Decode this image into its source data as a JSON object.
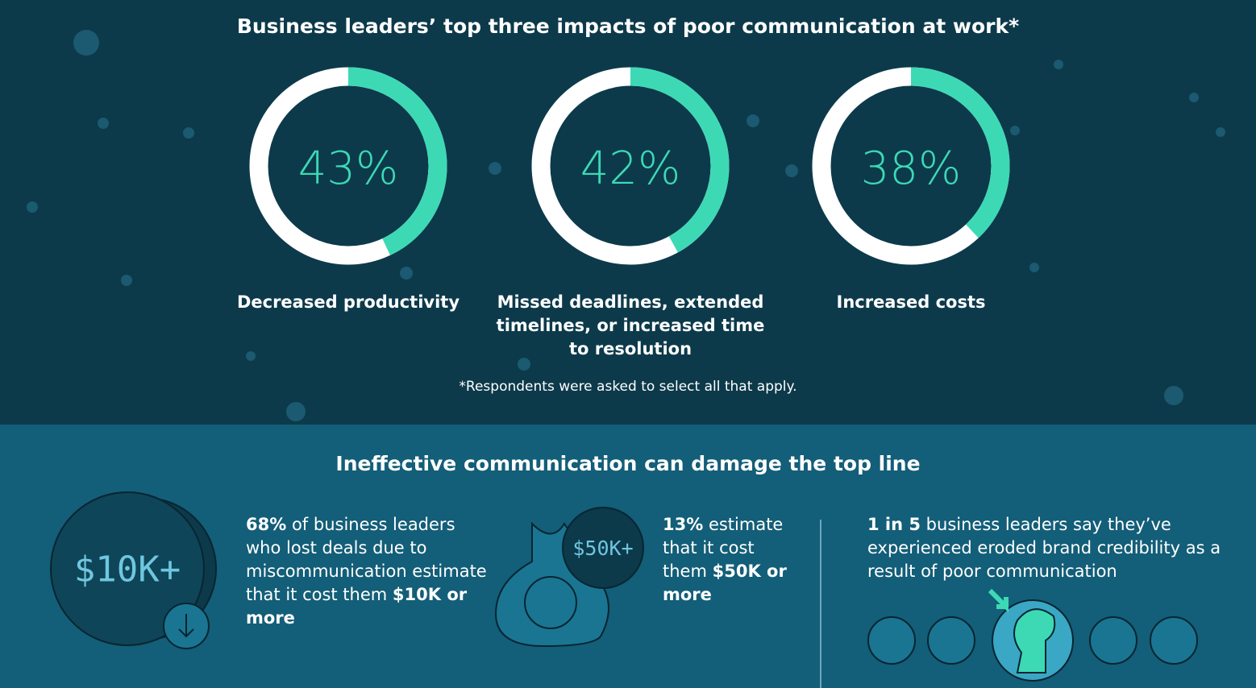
{
  "header": {
    "title": "Business leaders’ top three impacts of poor communication at work*"
  },
  "impacts": [
    {
      "value": 43,
      "label": "43%",
      "text": "Decreased productivity"
    },
    {
      "value": 42,
      "label": "42%",
      "text": "Missed deadlines, extended timelines, or increased time to resolution"
    },
    {
      "value": 38,
      "label": "38%",
      "text": "Increased costs"
    }
  ],
  "footnote": "*Respondents were asked to select all that apply.",
  "section2": {
    "title": "Ineffective communication can damage the top line",
    "stats": [
      {
        "badge": "$10K+",
        "runs": [
          {
            "bold": true,
            "text": "68%"
          },
          {
            "bold": false,
            "text": " of business leaders who lost deals due to miscommunication estimate that it cost them "
          },
          {
            "bold": true,
            "text": "$10K or more"
          }
        ]
      },
      {
        "badge": "$50K+",
        "runs": [
          {
            "bold": true,
            "text": "13%"
          },
          {
            "bold": false,
            "text": " estimate that it cost them "
          },
          {
            "bold": true,
            "text": "$50K or more"
          }
        ]
      },
      {
        "runs": [
          {
            "bold": true,
            "text": "1 in 5"
          },
          {
            "bold": false,
            "text": " business leaders say they’ve experienced eroded brand credibility as a result of poor communication"
          }
        ]
      }
    ]
  }
}
